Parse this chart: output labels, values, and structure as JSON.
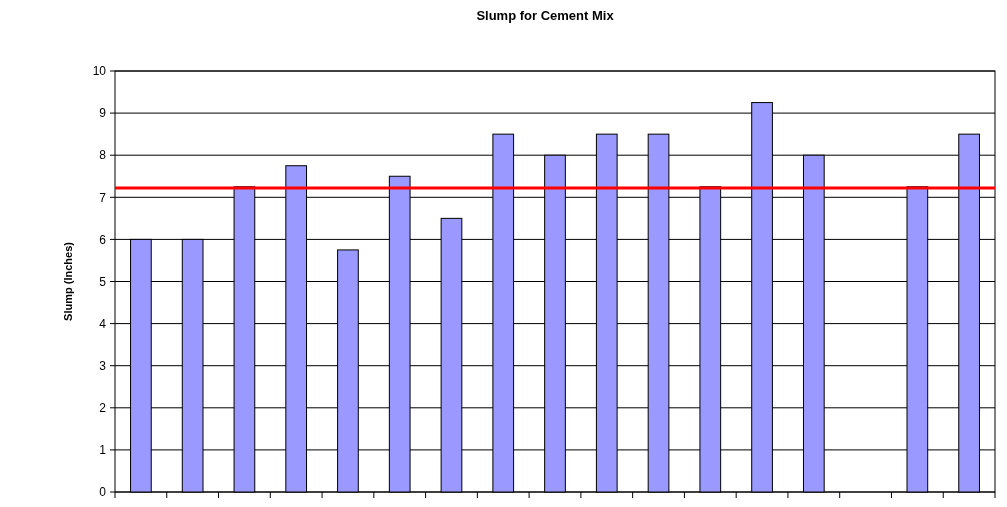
{
  "chart_data": {
    "type": "bar",
    "title": "Slump for Cement Mix",
    "ylabel": "Slump (Inches)",
    "categories": [
      null,
      null,
      null,
      null,
      null,
      null,
      null,
      null,
      null,
      null,
      null,
      null,
      null,
      null,
      null,
      null,
      null
    ],
    "values": [
      6,
      6,
      7.25,
      7.75,
      5.75,
      7.5,
      6.5,
      8.5,
      8,
      8.5,
      8.5,
      7.25,
      9.25,
      8,
      null,
      7.25,
      8.5
    ],
    "color": "#9999ff",
    "ylim": [
      0,
      10
    ],
    "yticks": [
      0,
      1,
      2,
      3,
      4,
      5,
      6,
      7,
      8,
      9,
      10
    ],
    "grid": "y",
    "ref_lines": [
      {
        "axis": "y",
        "value": 7.22,
        "color": "#ff0000"
      }
    ]
  }
}
